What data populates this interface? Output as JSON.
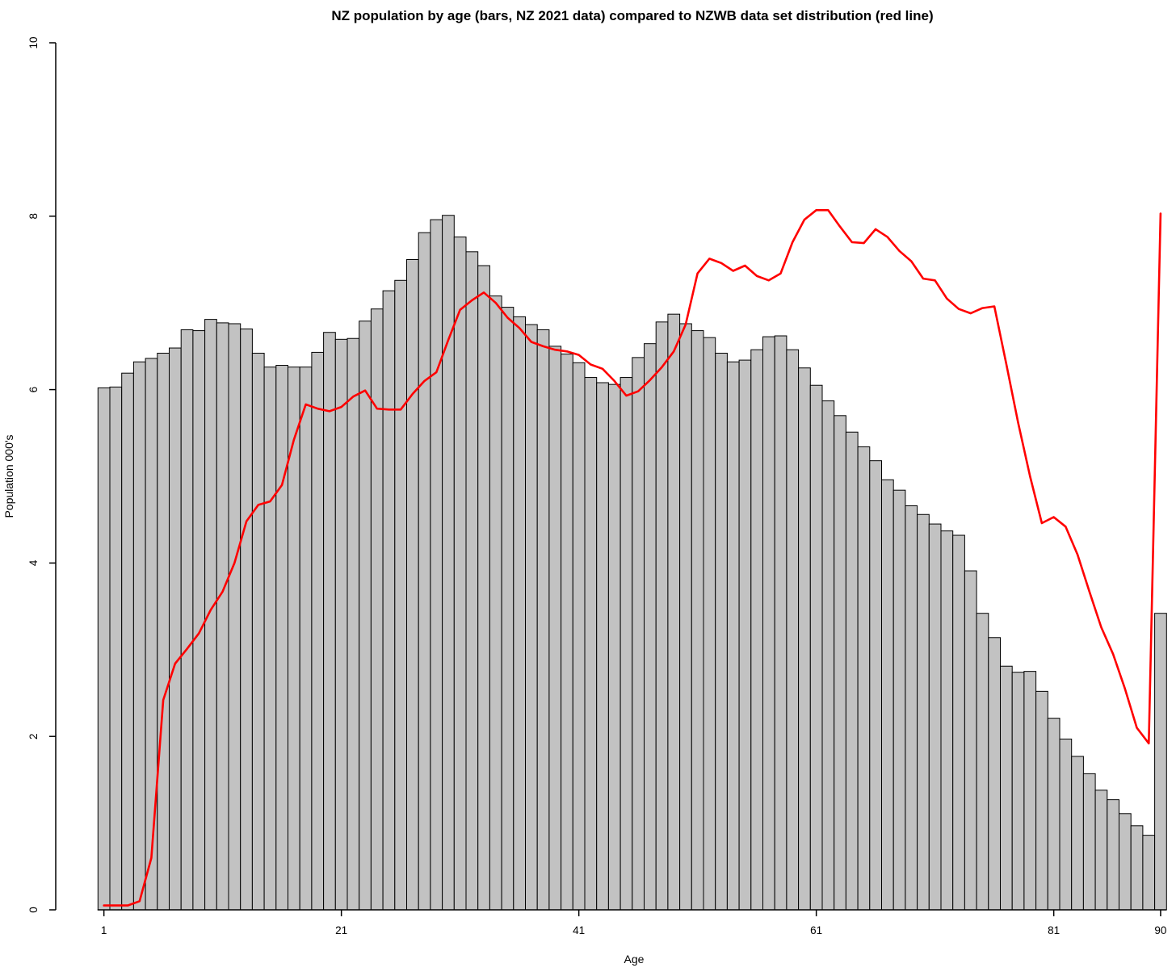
{
  "title": "NZ population by age (bars, NZ 2021 data) compared to NZWB data set distribution (red line)",
  "x_axis": {
    "label": "Age",
    "ticks": [
      1,
      21,
      41,
      61,
      81,
      90
    ]
  },
  "y_axis": {
    "label": "Population 000's",
    "ticks": [
      0,
      2,
      4,
      6,
      8,
      10
    ],
    "range": [
      0,
      10
    ]
  },
  "colors": {
    "background": "#ffffff",
    "bar_fill": "#c2c2c2",
    "bar_border": "#000000",
    "line": "#ff0000",
    "text": "#000000"
  },
  "chart_data": {
    "type": "bar",
    "title": "NZ population by age (bars, NZ 2021 data) compared to NZWB data set distribution (red line)",
    "xlabel": "Age",
    "ylabel": "Population 000's",
    "xlim": [
      1,
      90
    ],
    "ylim": [
      0,
      10
    ],
    "grid": false,
    "legend_position": "none",
    "x": [
      1,
      2,
      3,
      4,
      5,
      6,
      7,
      8,
      9,
      10,
      11,
      12,
      13,
      14,
      15,
      16,
      17,
      18,
      19,
      20,
      21,
      22,
      23,
      24,
      25,
      26,
      27,
      28,
      29,
      30,
      31,
      32,
      33,
      34,
      35,
      36,
      37,
      38,
      39,
      40,
      41,
      42,
      43,
      44,
      45,
      46,
      47,
      48,
      49,
      50,
      51,
      52,
      53,
      54,
      55,
      56,
      57,
      58,
      59,
      60,
      61,
      62,
      63,
      64,
      65,
      66,
      67,
      68,
      69,
      70,
      71,
      72,
      73,
      74,
      75,
      76,
      77,
      78,
      79,
      80,
      81,
      82,
      83,
      84,
      85,
      86,
      87,
      88,
      89,
      90
    ],
    "series": [
      {
        "name": "NZ population by age (bars, NZ 2021 data)",
        "type": "bar",
        "values": [
          6.02,
          6.03,
          6.19,
          6.32,
          6.36,
          6.42,
          6.48,
          6.69,
          6.68,
          6.81,
          6.77,
          6.76,
          6.7,
          6.42,
          6.26,
          6.28,
          6.26,
          6.26,
          6.43,
          6.66,
          6.58,
          6.59,
          6.79,
          6.93,
          7.14,
          7.26,
          7.5,
          7.81,
          7.96,
          8.01,
          7.76,
          7.59,
          7.43,
          7.08,
          6.95,
          6.84,
          6.75,
          6.69,
          6.5,
          6.41,
          6.31,
          6.14,
          6.08,
          6.06,
          6.14,
          6.37,
          6.53,
          6.78,
          6.87,
          6.76,
          6.68,
          6.6,
          6.42,
          6.32,
          6.34,
          6.46,
          6.61,
          6.62,
          6.46,
          6.25,
          6.05,
          5.87,
          5.7,
          5.51,
          5.34,
          5.18,
          4.96,
          4.84,
          4.66,
          4.56,
          4.45,
          4.37,
          4.32,
          3.91,
          3.42,
          3.14,
          2.81,
          2.74,
          2.75,
          2.52,
          2.21,
          1.97,
          1.77,
          1.57,
          1.38,
          1.27,
          1.11,
          0.97,
          0.86,
          3.42
        ]
      },
      {
        "name": "NZWB data set distribution (red line)",
        "type": "line",
        "values": [
          0.05,
          0.05,
          0.05,
          0.1,
          0.6,
          2.42,
          2.84,
          3.01,
          3.19,
          3.46,
          3.67,
          4.0,
          4.48,
          4.67,
          4.71,
          4.9,
          5.42,
          5.83,
          5.78,
          5.75,
          5.8,
          5.92,
          5.99,
          5.78,
          5.77,
          5.77,
          5.95,
          6.1,
          6.2,
          6.57,
          6.92,
          7.03,
          7.12,
          7.0,
          6.83,
          6.71,
          6.55,
          6.5,
          6.46,
          6.44,
          6.4,
          6.29,
          6.24,
          6.1,
          5.93,
          5.98,
          6.11,
          6.26,
          6.44,
          6.75,
          7.34,
          7.51,
          7.46,
          7.37,
          7.43,
          7.31,
          7.26,
          7.34,
          7.7,
          7.96,
          8.07,
          8.07,
          7.88,
          7.7,
          7.69,
          7.85,
          7.76,
          7.6,
          7.48,
          7.28,
          7.26,
          7.05,
          6.93,
          6.88,
          6.94,
          6.96,
          6.3,
          5.62,
          5.0,
          4.46,
          4.53,
          4.42,
          4.1,
          3.67,
          3.26,
          2.95,
          2.55,
          2.1,
          1.92,
          8.03
        ]
      }
    ]
  }
}
